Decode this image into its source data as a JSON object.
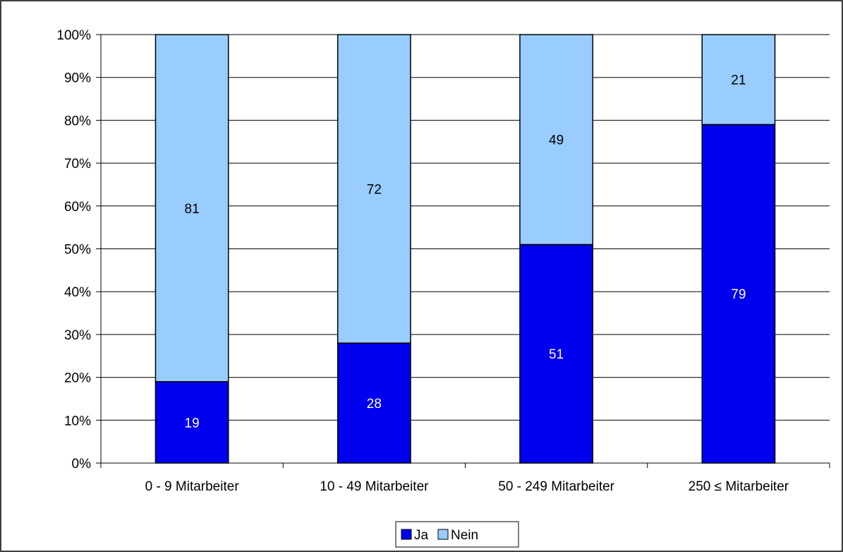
{
  "chart_data": {
    "type": "bar",
    "stacked": true,
    "normalized_percent": true,
    "categories": [
      "0 - 9 Mitarbeiter",
      "10 - 49 Mitarbeiter",
      "50 - 249 Mitarbeiter",
      "250 ≤ Mitarbeiter"
    ],
    "series": [
      {
        "name": "Ja",
        "values": [
          19,
          28,
          51,
          79
        ],
        "color": "#0000ee",
        "label_color": "#ffffff"
      },
      {
        "name": "Nein",
        "values": [
          81,
          72,
          49,
          21
        ],
        "color": "#99ccff",
        "label_color": "#000000"
      }
    ],
    "y_ticks": [
      "0%",
      "10%",
      "20%",
      "30%",
      "40%",
      "50%",
      "60%",
      "70%",
      "80%",
      "90%",
      "100%"
    ],
    "ylim": [
      0,
      100
    ],
    "grid": true,
    "legend_position": "bottom",
    "title": "",
    "xlabel": "",
    "ylabel": ""
  }
}
